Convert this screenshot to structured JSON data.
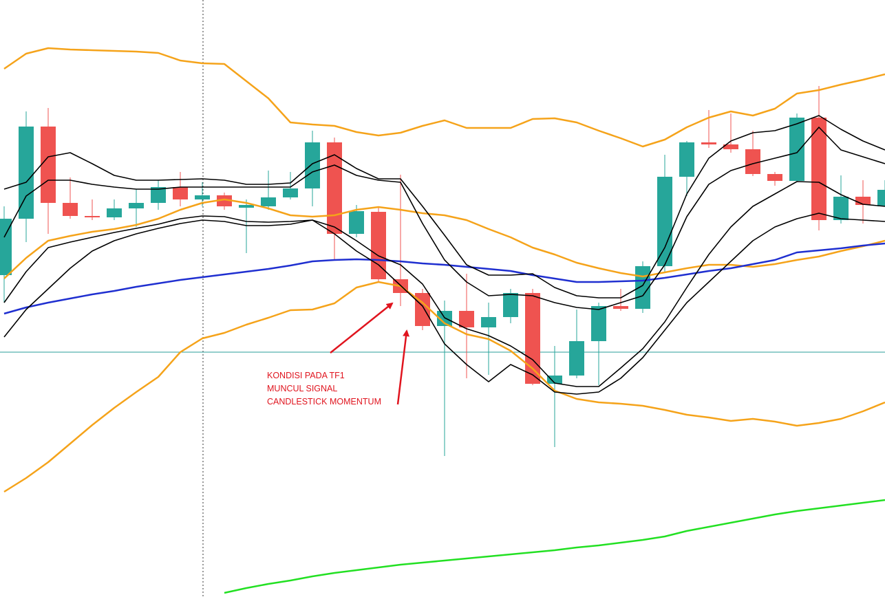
{
  "chart_data": {
    "type": "candlestick",
    "ylim": [
      0,
      868
    ],
    "up_color": "#26a69a",
    "down_color": "#ef5350",
    "open": [
      468,
      550,
      684,
      573,
      554,
      552,
      565,
      573,
      596,
      578,
      584,
      566,
      568,
      581,
      594,
      661,
      528,
      560,
      462,
      442,
      394,
      416,
      392,
      407,
      442,
      310,
      322,
      372,
      423,
      419,
      481,
      611,
      661,
      658,
      651,
      615,
      605,
      697,
      548,
      582,
      568
    ],
    "high": [
      568,
      706,
      711,
      610,
      578,
      578,
      593,
      606,
      618,
      603,
      588,
      578,
      620,
      618,
      678,
      668,
      570,
      568,
      614,
      448,
      431,
      470,
      428,
      448,
      448,
      365,
      418,
      428,
      448,
      488,
      643,
      663,
      708,
      703,
      678,
      618,
      703,
      743,
      613,
      606,
      606
    ],
    "low": [
      428,
      516,
      528,
      550,
      548,
      548,
      538,
      563,
      568,
      568,
      563,
      500,
      563,
      578,
      568,
      490,
      523,
      458,
      423,
      388,
      205,
      318,
      323,
      398,
      308,
      218,
      318,
      308,
      416,
      413,
      473,
      583,
      653,
      646,
      612,
      598,
      603,
      533,
      543,
      543,
      568
    ],
    "close": [
      550,
      684,
      573,
      554,
      552,
      565,
      573,
      596,
      578,
      584,
      568,
      570,
      581,
      594,
      661,
      528,
      561,
      462,
      442,
      394,
      416,
      392,
      407,
      442,
      310,
      322,
      372,
      423,
      419,
      481,
      611,
      661,
      658,
      651,
      615,
      605,
      697,
      548,
      582,
      570,
      592
    ],
    "series": [
      {
        "color": "#f5a31a",
        "values": [
          768,
          790,
          798,
          796,
          795,
          794,
          793,
          791,
          780,
          776,
          775,
          750,
          725,
          690,
          687,
          685,
          676,
          671,
          675,
          685,
          693,
          682,
          682,
          682,
          695,
          696,
          690,
          678,
          667,
          655,
          665,
          683,
          697,
          706,
          700,
          710,
          732,
          737,
          745,
          752,
          760
        ]
      },
      {
        "color": "#f5a31a",
        "values": [
          463,
          493,
          518,
          525,
          531,
          535,
          541,
          550,
          563,
          573,
          578,
          573,
          565,
          555,
          553,
          555,
          563,
          567,
          563,
          558,
          555,
          548,
          535,
          523,
          508,
          498,
          486,
          478,
          471,
          466,
          472,
          478,
          483,
          483,
          480,
          484,
          490,
          495,
          503,
          510,
          518
        ]
      },
      {
        "color": "#f5a31a",
        "values": [
          153,
          173,
          196,
          223,
          250,
          275,
          298,
          320,
          356,
          376,
          384,
          396,
          406,
          417,
          418,
          427,
          450,
          458,
          452,
          428,
          398,
          382,
          375,
          358,
          332,
          300,
          288,
          283,
          281,
          278,
          272,
          265,
          261,
          256,
          259,
          255,
          249,
          253,
          259,
          270,
          283
        ]
      },
      {
        "color": "#1f2fd0",
        "values": [
          412,
          421,
          428,
          434,
          440,
          445,
          451,
          456,
          461,
          465,
          469,
          473,
          477,
          482,
          488,
          490,
          491,
          490,
          488,
          485,
          483,
          480,
          477,
          474,
          468,
          463,
          458,
          458,
          459,
          460,
          464,
          469,
          474,
          478,
          484,
          490,
          501,
          504,
          507,
          511,
          514
        ]
      },
      {
        "color": "#22e022",
        "values": [
          null,
          null,
          null,
          null,
          null,
          null,
          null,
          null,
          null,
          null,
          6,
          13,
          19,
          24,
          30,
          35,
          39,
          43,
          47,
          50,
          53,
          56,
          59,
          62,
          65,
          68,
          72,
          75,
          79,
          83,
          88,
          96,
          102,
          108,
          114,
          120,
          125,
          129,
          133,
          137,
          141
        ]
      },
      {
        "color": "#000000",
        "values": [
          593,
          603,
          640,
          646,
          630,
          613,
          606,
          606,
          607,
          608,
          606,
          600,
          600,
          602,
          630,
          643,
          623,
          608,
          608,
          568,
          526,
          483,
          468,
          468,
          470,
          450,
          438,
          435,
          435,
          453,
          508,
          586,
          638,
          663,
          675,
          678,
          688,
          700,
          680,
          663,
          650
        ]
      },
      {
        "color": "#000000",
        "values": [
          523,
          583,
          606,
          606,
          600,
          596,
          593,
          593,
          596,
          596,
          596,
          596,
          596,
          596,
          618,
          628,
          613,
          606,
          603,
          543,
          490,
          458,
          438,
          440,
          438,
          428,
          421,
          418,
          428,
          438,
          483,
          553,
          600,
          620,
          630,
          638,
          646,
          683,
          650,
          640,
          630
        ]
      },
      {
        "color": "#000000",
        "values": [
          428,
          473,
          508,
          516,
          523,
          530,
          536,
          542,
          550,
          554,
          553,
          546,
          545,
          546,
          548,
          538,
          518,
          496,
          483,
          455,
          406,
          390,
          380,
          365,
          345,
          311,
          306,
          306,
          333,
          361,
          400,
          450,
          498,
          538,
          568,
          586,
          604,
          603,
          585,
          571,
          568
        ]
      },
      {
        "color": "#000000",
        "values": [
          378,
          418,
          448,
          478,
          503,
          518,
          528,
          536,
          543,
          548,
          546,
          540,
          540,
          542,
          548,
          528,
          503,
          483,
          453,
          423,
          368,
          338,
          313,
          338,
          323,
          298,
          295,
          298,
          318,
          348,
          388,
          428,
          458,
          488,
          518,
          538,
          550,
          558,
          550,
          548,
          546
        ]
      }
    ],
    "annotation": [
      "KONDISI PADA TF1",
      "MUNCUL SIGNAL",
      "CANDLESTICK MOMENTUM"
    ]
  }
}
